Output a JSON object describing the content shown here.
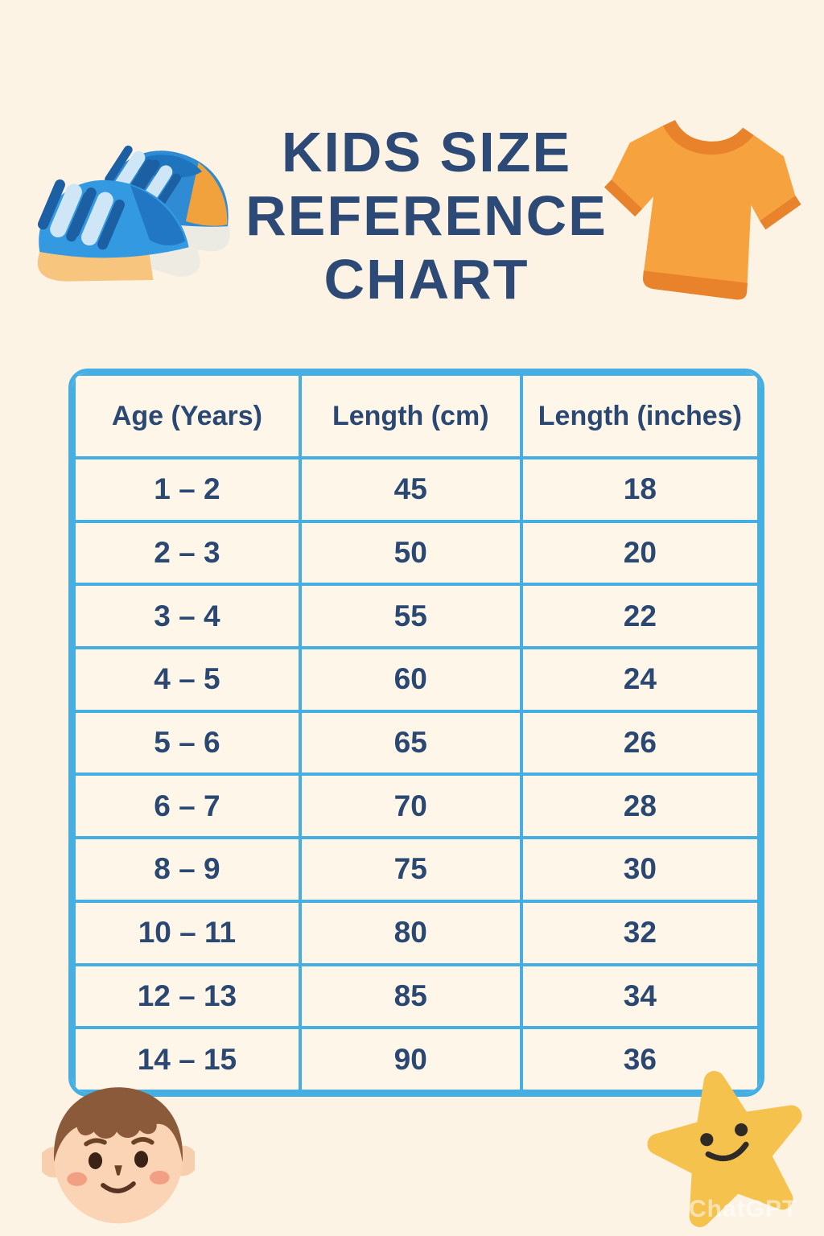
{
  "poster": {
    "title_lines": [
      "KIDS SIZE",
      "REFERENCE",
      "CHART"
    ],
    "watermark": "ChatGPT"
  },
  "chart_data": {
    "type": "table",
    "title": "Kids Size Reference Chart",
    "columns": [
      "Age (Years)",
      "Length (cm)",
      "Length (inches)"
    ],
    "rows": [
      [
        "1 – 2",
        "45",
        "18"
      ],
      [
        "2 – 3",
        "50",
        "20"
      ],
      [
        "3 – 4",
        "55",
        "22"
      ],
      [
        "4 – 5",
        "60",
        "24"
      ],
      [
        "5 – 6",
        "65",
        "26"
      ],
      [
        "6 – 7",
        "70",
        "28"
      ],
      [
        "8 – 9",
        "75",
        "30"
      ],
      [
        "10 – 11",
        "80",
        "32"
      ],
      [
        "12 – 13",
        "85",
        "34"
      ],
      [
        "14 – 15",
        "90",
        "36"
      ]
    ]
  },
  "icons": {
    "top_left": "sneakers-icon",
    "top_right": "tshirt-icon",
    "bottom_left": "boy-face-icon",
    "bottom_right": "star-icon"
  },
  "colors": {
    "background": "#fcf3e4",
    "table_border": "#45afe4",
    "cell_background": "#fdf6e9",
    "text_navy": "#2b4872",
    "title_navy": "#2c4a75",
    "shoe_blue": "#3399e0",
    "shoe_sole_sand": "#f7c57e",
    "shirt_orange": "#f6a33f",
    "shirt_trim_orange": "#e8832b",
    "star_yellow": "#f6c24e",
    "hair_brown": "#8a5a3a",
    "skin": "#fad4b4"
  }
}
